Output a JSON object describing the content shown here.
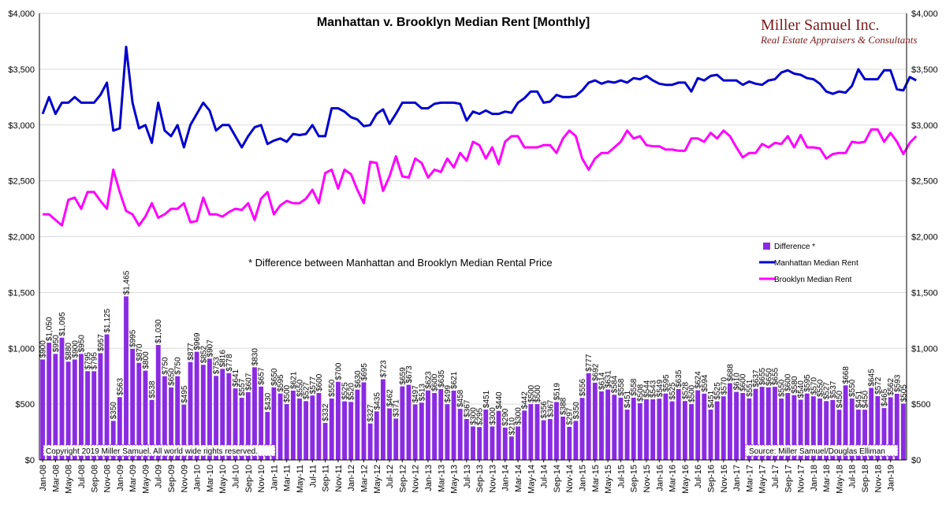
{
  "chart_data": {
    "type": "bar+line",
    "title": "Manhattan v. Brooklyn Median Rent [Monthly]",
    "note": "* Difference between Manhattan and Brooklyn Median Rental Price",
    "brand": {
      "name": "Miller Samuel Inc.",
      "tagline": "Real Estate Appraisers & Consultants"
    },
    "copyright": "Copyright 2019 Miller Samuel.  All world wide rights reserved.",
    "source": "Source: Miller Samuel/Douglas Elliman",
    "y_ticks": [
      "$0",
      "$500",
      "$1,000",
      "$1,500",
      "$2,000",
      "$2,500",
      "$3,000",
      "$3,500",
      "$4,000"
    ],
    "ylim": [
      0,
      4000
    ],
    "x_tick_labels": [
      "Jan-08",
      "Mar-08",
      "May-08",
      "Jul-08",
      "Sep-08",
      "Nov-08",
      "Jan-09",
      "Mar-09",
      "May-09",
      "Jul-09",
      "Sep-09",
      "Nov-09",
      "Jan-10",
      "Mar-10",
      "May-10",
      "Jul-10",
      "Sep-10",
      "Nov-10",
      "Jan-11",
      "Mar-11",
      "May-11",
      "Jul-11",
      "Sep-11",
      "Nov-11",
      "Jan-12",
      "Mar-12",
      "May-12",
      "Jul-12",
      "Sep-12",
      "Nov-12",
      "Jan-13",
      "Mar-13",
      "May-13",
      "Jul-13",
      "Sep-13",
      "Nov-13",
      "Jan-14",
      "Mar-14",
      "May-14",
      "Jul-14",
      "Sep-14",
      "Nov-14",
      "Jan-15",
      "Mar-15",
      "May-15",
      "Jul-15",
      "Sep-15",
      "Nov-15",
      "Jan-16",
      "Mar-16",
      "May-16",
      "Jul-16",
      "Sep-16",
      "Nov-16",
      "Jan-17",
      "Mar-17",
      "May-17",
      "Jul-17",
      "Sep-17",
      "Nov-17",
      "Jan-18",
      "Mar-18",
      "May-18",
      "Jul-18",
      "Sep-18",
      "Nov-18",
      "Jan-19"
    ],
    "legend": [
      {
        "name": "Difference *",
        "color": "#8a2be2"
      },
      {
        "name": "Manhattan Median Rent",
        "color": "#0000cc"
      },
      {
        "name": "Brooklyn Median Rent",
        "color": "#ff00ff"
      }
    ],
    "series": [
      {
        "name": "Difference *",
        "color": "#8a2be2",
        "values": [
          900,
          1050,
          950,
          1095,
          880,
          900,
          950,
          795,
          795,
          957,
          1125,
          350,
          563,
          1465,
          995,
          870,
          800,
          538,
          1030,
          750,
          650,
          750,
          495,
          877,
          969,
          852,
          907,
          753,
          816,
          778,
          641,
          557,
          607,
          830,
          657,
          430,
          650,
          595,
          500,
          621,
          550,
          527,
          577,
          600,
          332,
          550,
          700,
          525,
          520,
          630,
          695,
          327,
          435,
          723,
          462,
          371,
          659,
          673,
          497,
          513,
          623,
          600,
          635,
          499,
          621,
          458,
          367,
          300,
          295,
          451,
          300,
          440,
          290,
          210,
          300,
          442,
          500,
          500,
          356,
          367,
          519,
          388,
          297,
          350,
          556,
          777,
          692,
          614,
          631,
          584,
          558,
          451,
          558,
          508,
          544,
          543,
          549,
          595,
          525,
          635,
          528,
          500,
          624,
          594,
          451,
          525,
          570,
          688,
          610,
          600,
          551,
          637,
          655,
          650,
          655,
          550,
          600,
          580,
          540,
          595,
          570,
          550,
          527,
          537,
          450,
          668,
          550,
          451,
          450,
          645,
          572,
          465,
          562,
          593,
          505
        ]
      },
      {
        "name": "Manhattan Median Rent",
        "color": "#0000cc",
        "values": [
          3100,
          3250,
          3100,
          3200,
          3200,
          3250,
          3200,
          3200,
          3200,
          3270,
          3380,
          2950,
          2970,
          3700,
          3200,
          2970,
          3000,
          2840,
          3200,
          2950,
          2900,
          3000,
          2800,
          3000,
          3100,
          3200,
          3130,
          2950,
          3000,
          3000,
          2900,
          2800,
          2900,
          2980,
          3000,
          2830,
          2860,
          2880,
          2850,
          2920,
          2910,
          2920,
          3000,
          2900,
          2900,
          3150,
          3150,
          3120,
          3070,
          3050,
          2990,
          3000,
          3100,
          3140,
          3010,
          3100,
          3200,
          3200,
          3200,
          3150,
          3150,
          3190,
          3200,
          3200,
          3200,
          3190,
          3040,
          3120,
          3100,
          3130,
          3100,
          3100,
          3120,
          3110,
          3200,
          3240,
          3300,
          3300,
          3200,
          3210,
          3270,
          3250,
          3250,
          3260,
          3310,
          3380,
          3400,
          3370,
          3390,
          3380,
          3400,
          3380,
          3420,
          3410,
          3440,
          3400,
          3370,
          3360,
          3360,
          3380,
          3380,
          3300,
          3420,
          3400,
          3440,
          3450,
          3400,
          3400,
          3400,
          3360,
          3390,
          3370,
          3360,
          3400,
          3410,
          3470,
          3490,
          3460,
          3450,
          3420,
          3410,
          3370,
          3300,
          3280,
          3300,
          3290,
          3350,
          3500,
          3410,
          3410,
          3410,
          3490,
          3490,
          3320,
          3310,
          3430,
          3400
        ]
      },
      {
        "name": "Brooklyn Median Rent",
        "color": "#ff00ff",
        "values": [
          2200,
          2200,
          2150,
          2100,
          2330,
          2350,
          2250,
          2400,
          2400,
          2320,
          2250,
          2600,
          2400,
          2230,
          2200,
          2100,
          2180,
          2300,
          2170,
          2200,
          2250,
          2250,
          2300,
          2130,
          2140,
          2350,
          2200,
          2200,
          2180,
          2220,
          2250,
          2240,
          2300,
          2150,
          2340,
          2400,
          2200,
          2280,
          2320,
          2300,
          2300,
          2340,
          2420,
          2300,
          2570,
          2600,
          2430,
          2600,
          2560,
          2420,
          2300,
          2670,
          2660,
          2410,
          2540,
          2720,
          2540,
          2530,
          2700,
          2660,
          2530,
          2600,
          2580,
          2700,
          2620,
          2750,
          2680,
          2850,
          2820,
          2700,
          2800,
          2650,
          2850,
          2900,
          2900,
          2800,
          2800,
          2800,
          2820,
          2820,
          2750,
          2880,
          2950,
          2900,
          2700,
          2600,
          2700,
          2750,
          2750,
          2800,
          2850,
          2950,
          2880,
          2900,
          2820,
          2810,
          2810,
          2780,
          2780,
          2770,
          2770,
          2880,
          2880,
          2850,
          2930,
          2880,
          2950,
          2900,
          2800,
          2710,
          2750,
          2750,
          2830,
          2800,
          2840,
          2830,
          2900,
          2800,
          2910,
          2800,
          2800,
          2790,
          2700,
          2740,
          2750,
          2750,
          2850,
          2840,
          2850,
          2960,
          2960,
          2850,
          2930,
          2850,
          2740,
          2840,
          2900
        ]
      }
    ]
  }
}
